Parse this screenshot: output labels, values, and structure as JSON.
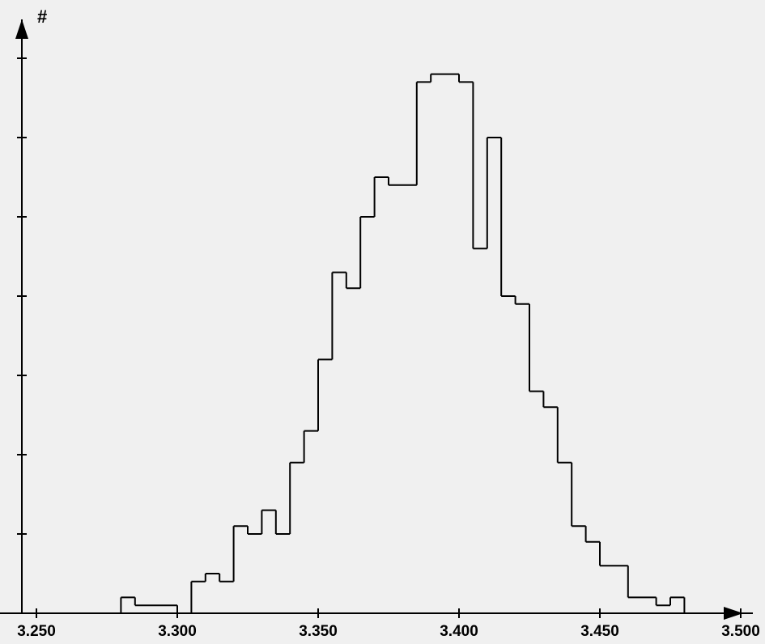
{
  "chart_data": {
    "type": "histogram",
    "ylabel": "#",
    "xlim": [
      3.25,
      3.5
    ],
    "xticks": [
      "3.250",
      "3.300",
      "3.350",
      "3.400",
      "3.450",
      "3.500"
    ],
    "xtick_values": [
      3.25,
      3.3,
      3.35,
      3.4,
      3.45,
      3.5
    ],
    "y_ticks_count": 7,
    "y_tick_step": 10,
    "ylim": [
      0,
      70
    ],
    "bins": [
      {
        "start": 3.28,
        "end": 3.285,
        "count": 2
      },
      {
        "start": 3.285,
        "end": 3.3,
        "count": 1
      },
      {
        "start": 3.3,
        "end": 3.305,
        "count": 0
      },
      {
        "start": 3.305,
        "end": 3.31,
        "count": 4
      },
      {
        "start": 3.31,
        "end": 3.315,
        "count": 5
      },
      {
        "start": 3.315,
        "end": 3.32,
        "count": 4
      },
      {
        "start": 3.32,
        "end": 3.325,
        "count": 11
      },
      {
        "start": 3.325,
        "end": 3.33,
        "count": 10
      },
      {
        "start": 3.33,
        "end": 3.335,
        "count": 13
      },
      {
        "start": 3.335,
        "end": 3.34,
        "count": 10
      },
      {
        "start": 3.34,
        "end": 3.345,
        "count": 19
      },
      {
        "start": 3.345,
        "end": 3.35,
        "count": 23
      },
      {
        "start": 3.35,
        "end": 3.355,
        "count": 32
      },
      {
        "start": 3.355,
        "end": 3.36,
        "count": 43
      },
      {
        "start": 3.36,
        "end": 3.365,
        "count": 41
      },
      {
        "start": 3.365,
        "end": 3.37,
        "count": 50
      },
      {
        "start": 3.37,
        "end": 3.375,
        "count": 55
      },
      {
        "start": 3.375,
        "end": 3.385,
        "count": 54
      },
      {
        "start": 3.385,
        "end": 3.39,
        "count": 67
      },
      {
        "start": 3.39,
        "end": 3.4,
        "count": 68
      },
      {
        "start": 3.4,
        "end": 3.405,
        "count": 67
      },
      {
        "start": 3.405,
        "end": 3.41,
        "count": 46
      },
      {
        "start": 3.41,
        "end": 3.415,
        "count": 60
      },
      {
        "start": 3.415,
        "end": 3.42,
        "count": 40
      },
      {
        "start": 3.42,
        "end": 3.425,
        "count": 39
      },
      {
        "start": 3.425,
        "end": 3.43,
        "count": 28
      },
      {
        "start": 3.43,
        "end": 3.435,
        "count": 26
      },
      {
        "start": 3.435,
        "end": 3.44,
        "count": 19
      },
      {
        "start": 3.44,
        "end": 3.445,
        "count": 11
      },
      {
        "start": 3.445,
        "end": 3.45,
        "count": 9
      },
      {
        "start": 3.45,
        "end": 3.46,
        "count": 6
      },
      {
        "start": 3.46,
        "end": 3.47,
        "count": 2
      },
      {
        "start": 3.47,
        "end": 3.475,
        "count": 1
      },
      {
        "start": 3.475,
        "end": 3.48,
        "count": 2
      }
    ],
    "grid": false,
    "colors": {
      "background": "#f0f0f0",
      "line": "#000000"
    }
  }
}
